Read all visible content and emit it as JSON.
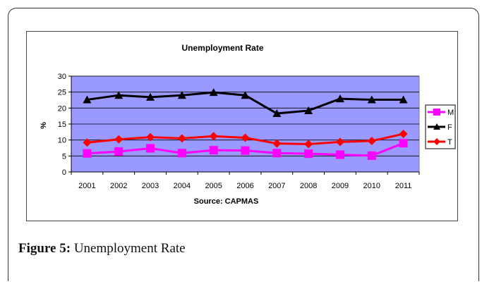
{
  "caption": {
    "label": "Figure 5:",
    "text": "Unemployment Rate"
  },
  "chart_data": {
    "type": "line",
    "title": "Unemployment Rate",
    "xlabel": "Source: CAPMAS",
    "ylabel": "%",
    "categories": [
      "2001",
      "2002",
      "2003",
      "2004",
      "2005",
      "2006",
      "2007",
      "2008",
      "2009",
      "2010",
      "2011"
    ],
    "ylim": [
      0,
      30
    ],
    "yticks": [
      0,
      5,
      10,
      15,
      20,
      25,
      30
    ],
    "grid": true,
    "plot_background": "#9999ff",
    "legend_position": "right",
    "series": [
      {
        "name": "M",
        "color": "#ff00ff",
        "marker": "square",
        "values": [
          5.8,
          6.4,
          7.4,
          5.9,
          6.8,
          6.7,
          5.9,
          5.7,
          5.4,
          5.1,
          9.0
        ]
      },
      {
        "name": "F",
        "color": "#000000",
        "marker": "triangle",
        "values": [
          22.6,
          24.0,
          23.4,
          24.0,
          24.9,
          24.0,
          18.3,
          19.2,
          22.9,
          22.6,
          22.6
        ]
      },
      {
        "name": "T",
        "color": "#ff0000",
        "marker": "diamond",
        "values": [
          9.2,
          10.2,
          10.9,
          10.5,
          11.2,
          10.7,
          8.9,
          8.7,
          9.4,
          9.7,
          11.9
        ]
      }
    ]
  }
}
